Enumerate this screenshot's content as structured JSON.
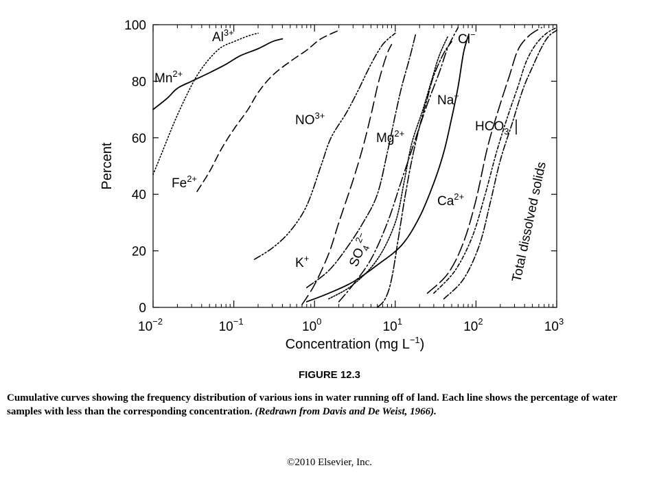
{
  "figure": {
    "label": "FIGURE 12.3",
    "caption_main": "Cumulative curves showing the frequency distribution of various ions in water running off of land. Each line shows the percentage of water samples with less than the corresponding concentration.",
    "caption_citation": "(Redrawn from Davis and De Weist, 1966).",
    "copyright": "©2010 Elsevier, Inc."
  },
  "chart_data": {
    "type": "line",
    "title": "",
    "xlabel": "Concentration (mg L⁻¹)",
    "ylabel": "Percent",
    "xscale": "log",
    "xlim": [
      0.01,
      1000
    ],
    "ylim": [
      0,
      100
    ],
    "grid": false,
    "legend": "none (series labeled directly on curves)",
    "x_ticks": [
      {
        "value": 0.01,
        "base": "10",
        "exp": "−2"
      },
      {
        "value": 0.1,
        "base": "10",
        "exp": "−1"
      },
      {
        "value": 1,
        "base": "10",
        "exp": "0"
      },
      {
        "value": 10,
        "base": "10",
        "exp": "1"
      },
      {
        "value": 100,
        "base": "10",
        "exp": "2"
      },
      {
        "value": 1000,
        "base": "10",
        "exp": "3"
      }
    ],
    "y_ticks": [
      0,
      20,
      40,
      60,
      80,
      100
    ],
    "series": [
      {
        "id": "mn",
        "name": "Mn2+",
        "dash": "none",
        "x": [
          0.01,
          0.015,
          0.02,
          0.03,
          0.05,
          0.08,
          0.12,
          0.2,
          0.3,
          0.4
        ],
        "y": [
          70,
          74,
          77.5,
          80,
          83,
          86,
          89,
          91.5,
          94,
          95
        ]
      },
      {
        "id": "al",
        "name": "Al3+",
        "dash": "1.5,3",
        "x": [
          0.01,
          0.013,
          0.018,
          0.025,
          0.035,
          0.05,
          0.07,
          0.1,
          0.15,
          0.2
        ],
        "y": [
          47,
          55,
          65,
          74,
          82,
          88,
          92,
          94,
          96,
          97
        ]
      },
      {
        "id": "fe",
        "name": "Fe2+",
        "dash": "11,6",
        "x": [
          0.035,
          0.05,
          0.07,
          0.1,
          0.15,
          0.2,
          0.3,
          0.5,
          0.8,
          1.2,
          2
        ],
        "y": [
          41,
          48,
          56,
          63,
          70,
          76,
          82,
          87,
          91,
          95,
          98
        ]
      },
      {
        "id": "no",
        "name": "NO3+",
        "dash": "10,3,2,3,2,3",
        "x": [
          0.18,
          0.3,
          0.5,
          0.8,
          1.2,
          1.6,
          2.5,
          3.5,
          5,
          7,
          10
        ],
        "y": [
          17,
          21,
          27,
          36,
          50,
          60,
          69,
          77,
          86,
          93,
          97
        ]
      },
      {
        "id": "k",
        "name": "K+",
        "dash": "16,7",
        "x": [
          0.7,
          1,
          1.5,
          2,
          3,
          4,
          5,
          6,
          7,
          8,
          9
        ],
        "y": [
          1,
          8,
          19,
          30,
          45,
          57,
          68,
          78,
          85,
          90,
          93
        ]
      },
      {
        "id": "mg",
        "name": "Mg2+",
        "dash": "12,3,2,3",
        "x": [
          0.8,
          1.5,
          2.5,
          4,
          6,
          8,
          10,
          12,
          15,
          18
        ],
        "y": [
          7,
          13,
          21,
          30,
          40,
          55,
          68,
          78,
          88,
          97
        ]
      },
      {
        "id": "so4",
        "name": "SO4 2−",
        "dash": "14,4,2,4",
        "x": [
          2,
          3,
          5,
          8,
          12,
          18,
          25,
          35,
          45,
          60
        ],
        "y": [
          2,
          8,
          17,
          30,
          45,
          60,
          72,
          83,
          92,
          99
        ]
      },
      {
        "id": "cl",
        "name": "Cl−",
        "dash": "2,2",
        "x": [
          1.5,
          3,
          6,
          10,
          13,
          16,
          22,
          28,
          35,
          45
        ],
        "y": [
          3,
          8,
          17,
          30,
          45,
          58,
          70,
          80,
          89,
          96
        ]
      },
      {
        "id": "na",
        "name": "Na+",
        "dash": "12,3,3,3",
        "x": [
          6,
          7.5,
          9,
          11,
          13,
          16,
          20,
          25,
          30,
          40,
          50
        ],
        "y": [
          0,
          3,
          10,
          25,
          38,
          52,
          64,
          74,
          82,
          90,
          94
        ]
      },
      {
        "id": "ca",
        "name": "Ca2+",
        "dash": "none",
        "x": [
          0.8,
          1.5,
          3,
          6,
          12,
          20,
          30,
          40,
          50,
          60,
          70,
          80
        ],
        "y": [
          2,
          5,
          9,
          15,
          22,
          32,
          44,
          55,
          67,
          78,
          90,
          96
        ]
      },
      {
        "id": "tds",
        "name": "Total dissolved solids",
        "dash": "9,3,2,3",
        "x": [
          40,
          70,
          110,
          150,
          200,
          280,
          380,
          500,
          650,
          800,
          1000
        ],
        "y": [
          3,
          10,
          22,
          37,
          52,
          65,
          77,
          85,
          92,
          96,
          98
        ]
      },
      {
        "id": "hco3",
        "name": "HCO3−",
        "dash": "18,6",
        "x": [
          25,
          45,
          70,
          100,
          140,
          200,
          260,
          330,
          450,
          650
        ],
        "y": [
          5,
          12,
          23,
          38,
          57,
          72,
          82,
          91,
          96,
          99
        ]
      },
      {
        "id": "tds2",
        "name": "",
        "dash": "5,3,2,3",
        "x": [
          30,
          55,
          90,
          130,
          180,
          250,
          330,
          420,
          550,
          750,
          1000
        ],
        "y": [
          5,
          13,
          25,
          40,
          55,
          68,
          78,
          87,
          93,
          97,
          99
        ]
      }
    ]
  }
}
